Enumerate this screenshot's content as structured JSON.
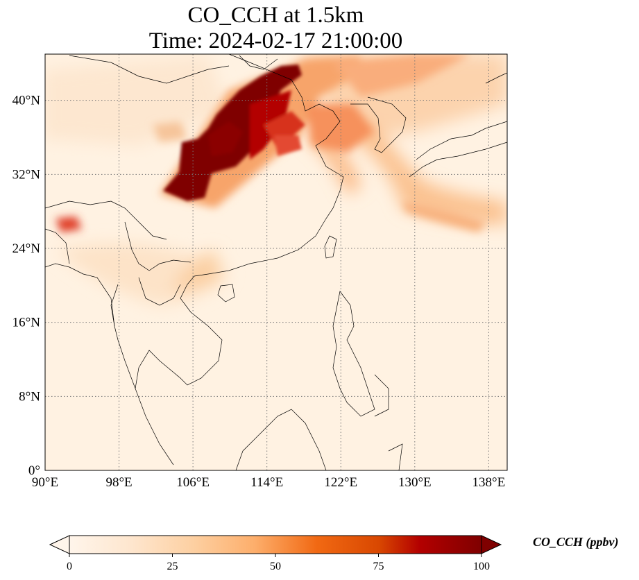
{
  "title": {
    "line1": "CO_CCH at 1.5km",
    "line2": "Time: 2024-02-17 21:00:00"
  },
  "map": {
    "lon_range": [
      90,
      140
    ],
    "lat_range": [
      0,
      45
    ],
    "x_ticks": [
      {
        "value": 90,
        "label": "90°E"
      },
      {
        "value": 98,
        "label": "98°E"
      },
      {
        "value": 106,
        "label": "106°E"
      },
      {
        "value": 114,
        "label": "114°E"
      },
      {
        "value": 122,
        "label": "122°E"
      },
      {
        "value": 130,
        "label": "130°E"
      },
      {
        "value": 138,
        "label": "138°E"
      }
    ],
    "y_ticks": [
      {
        "value": 0,
        "label": "0°"
      },
      {
        "value": 8,
        "label": "8°N"
      },
      {
        "value": 16,
        "label": "16°N"
      },
      {
        "value": 24,
        "label": "24°N"
      },
      {
        "value": 32,
        "label": "32°N"
      },
      {
        "value": 40,
        "label": "40°N"
      }
    ],
    "gridlines": true
  },
  "colorbar": {
    "min": 0,
    "max": 100,
    "extend": "both",
    "ticks": [
      "0",
      "25",
      "50",
      "75",
      "100"
    ],
    "label": "CO_CCH (ppbv)",
    "colors": [
      "#fff5eb",
      "#fdd49e",
      "#fdbb84",
      "#fc8d59",
      "#ef6548",
      "#d7301f",
      "#b30000",
      "#7f0000"
    ]
  }
}
